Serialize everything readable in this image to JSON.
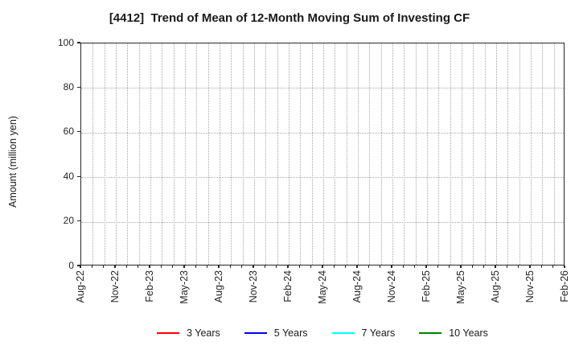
{
  "chart_data": {
    "type": "line",
    "title": "[4412]  Trend of Mean of 12-Month Moving Sum of Investing CF",
    "xlabel": "",
    "ylabel": "Amount (million yen)",
    "ylim": [
      0,
      100
    ],
    "yticks": [
      0,
      20,
      40,
      60,
      80,
      100
    ],
    "x_tick_labels": [
      "Aug-22",
      "Nov-22",
      "Feb-23",
      "May-23",
      "Aug-23",
      "Nov-23",
      "Feb-24",
      "May-24",
      "Aug-24",
      "Nov-24",
      "Feb-25",
      "May-25",
      "Aug-25",
      "Nov-25",
      "Feb-26"
    ],
    "x_total_months": 42,
    "x_major_interval_months": 3,
    "x_minor_interval_months": 1,
    "grid": true,
    "grid_style": "dotted",
    "legend_position": "bottom-center",
    "series": [
      {
        "name": "3 Years",
        "color": "#ff0000",
        "x": [],
        "values": []
      },
      {
        "name": "5 Years",
        "color": "#0000ff",
        "x": [],
        "values": []
      },
      {
        "name": "7 Years",
        "color": "#00ffff",
        "x": [],
        "values": []
      },
      {
        "name": "10 Years",
        "color": "#008000",
        "x": [],
        "values": []
      }
    ]
  },
  "colors": {
    "background": "#ffffff",
    "text": "#1a1a1a",
    "axis": "#262626",
    "grid": "#a8a8a8"
  }
}
